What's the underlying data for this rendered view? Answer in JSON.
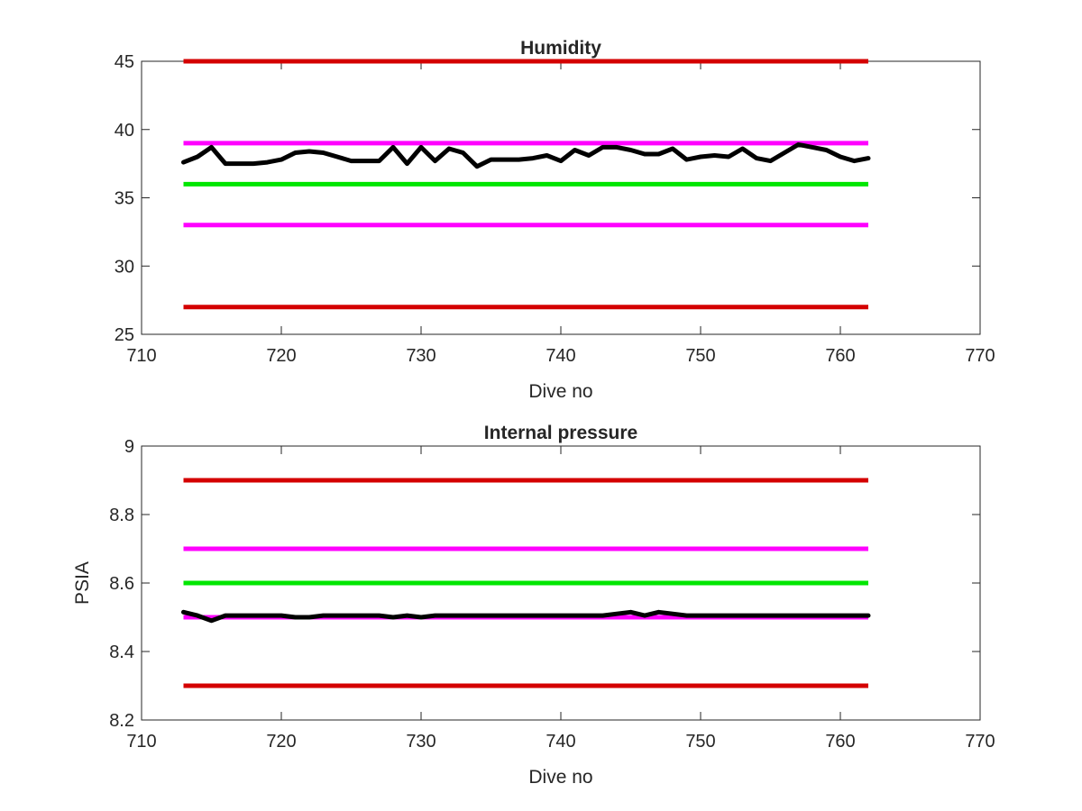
{
  "chart_data": [
    {
      "type": "line",
      "title": "Humidity",
      "xlabel": "Dive no",
      "ylabel": "",
      "xlim": [
        710,
        770
      ],
      "ylim": [
        25,
        45
      ],
      "xticks": [
        710,
        720,
        730,
        740,
        750,
        760,
        770
      ],
      "yticks": [
        25,
        30,
        35,
        40,
        45
      ],
      "xtick_labels": [
        "710",
        "720",
        "730",
        "740",
        "750",
        "760",
        "770"
      ],
      "ytick_labels": [
        "25",
        "30",
        "35",
        "40",
        "45"
      ],
      "grid": false,
      "reference_lines": [
        {
          "y": 45,
          "x_range": [
            713,
            762
          ],
          "color": "#d40000"
        },
        {
          "y": 39,
          "x_range": [
            713,
            762
          ],
          "color": "#ff00ff"
        },
        {
          "y": 36,
          "x_range": [
            713,
            762
          ],
          "color": "#00e600"
        },
        {
          "y": 33,
          "x_range": [
            713,
            762
          ],
          "color": "#ff00ff"
        },
        {
          "y": 27,
          "x_range": [
            713,
            762
          ],
          "color": "#d40000"
        }
      ],
      "series": [
        {
          "color": "#000000",
          "x": [
            713,
            714,
            715,
            716,
            717,
            718,
            719,
            720,
            721,
            722,
            723,
            724,
            725,
            726,
            727,
            728,
            729,
            730,
            731,
            732,
            733,
            734,
            735,
            736,
            737,
            738,
            739,
            740,
            741,
            742,
            743,
            744,
            745,
            746,
            747,
            748,
            749,
            750,
            751,
            752,
            753,
            754,
            755,
            756,
            757,
            758,
            759,
            760,
            761,
            762
          ],
          "y": [
            37.6,
            38.0,
            38.7,
            37.5,
            37.5,
            37.5,
            37.6,
            37.8,
            38.3,
            38.4,
            38.3,
            38.0,
            37.7,
            37.7,
            37.7,
            38.7,
            37.5,
            38.7,
            37.7,
            38.6,
            38.3,
            37.3,
            37.8,
            37.8,
            37.8,
            37.9,
            38.1,
            37.7,
            38.5,
            38.1,
            38.7,
            38.7,
            38.5,
            38.2,
            38.2,
            38.6,
            37.8,
            38.0,
            38.1,
            38.0,
            38.6,
            37.9,
            37.7,
            38.3,
            38.9,
            38.7,
            38.5,
            38.0,
            37.7,
            37.9
          ]
        }
      ]
    },
    {
      "type": "line",
      "title": "Internal pressure",
      "xlabel": "Dive no",
      "ylabel": "PSIA",
      "xlim": [
        710,
        770
      ],
      "ylim": [
        8.2,
        9
      ],
      "xticks": [
        710,
        720,
        730,
        740,
        750,
        760,
        770
      ],
      "yticks": [
        8.2,
        8.4,
        8.6,
        8.8,
        9
      ],
      "xtick_labels": [
        "710",
        "720",
        "730",
        "740",
        "750",
        "760",
        "770"
      ],
      "ytick_labels": [
        "8.2",
        "8.4",
        "8.6",
        "8.8",
        "9"
      ],
      "grid": false,
      "reference_lines": [
        {
          "y": 8.9,
          "x_range": [
            713,
            762
          ],
          "color": "#d40000"
        },
        {
          "y": 8.7,
          "x_range": [
            713,
            762
          ],
          "color": "#ff00ff"
        },
        {
          "y": 8.6,
          "x_range": [
            713,
            762
          ],
          "color": "#00e600"
        },
        {
          "y": 8.5,
          "x_range": [
            713,
            762
          ],
          "color": "#ff00ff"
        },
        {
          "y": 8.3,
          "x_range": [
            713,
            762
          ],
          "color": "#d40000"
        }
      ],
      "series": [
        {
          "color": "#000000",
          "x": [
            713,
            714,
            715,
            716,
            717,
            718,
            719,
            720,
            721,
            722,
            723,
            724,
            725,
            726,
            727,
            728,
            729,
            730,
            731,
            732,
            733,
            734,
            735,
            736,
            737,
            738,
            739,
            740,
            741,
            742,
            743,
            744,
            745,
            746,
            747,
            748,
            749,
            750,
            751,
            752,
            753,
            754,
            755,
            756,
            757,
            758,
            759,
            760,
            761,
            762
          ],
          "y": [
            8.515,
            8.505,
            8.49,
            8.505,
            8.505,
            8.505,
            8.505,
            8.505,
            8.5,
            8.5,
            8.505,
            8.505,
            8.505,
            8.505,
            8.505,
            8.5,
            8.505,
            8.5,
            8.505,
            8.505,
            8.505,
            8.505,
            8.505,
            8.505,
            8.505,
            8.505,
            8.505,
            8.505,
            8.505,
            8.505,
            8.505,
            8.51,
            8.515,
            8.505,
            8.515,
            8.51,
            8.505,
            8.505,
            8.505,
            8.505,
            8.505,
            8.505,
            8.505,
            8.505,
            8.505,
            8.505,
            8.505,
            8.505,
            8.505,
            8.505
          ]
        }
      ]
    }
  ]
}
